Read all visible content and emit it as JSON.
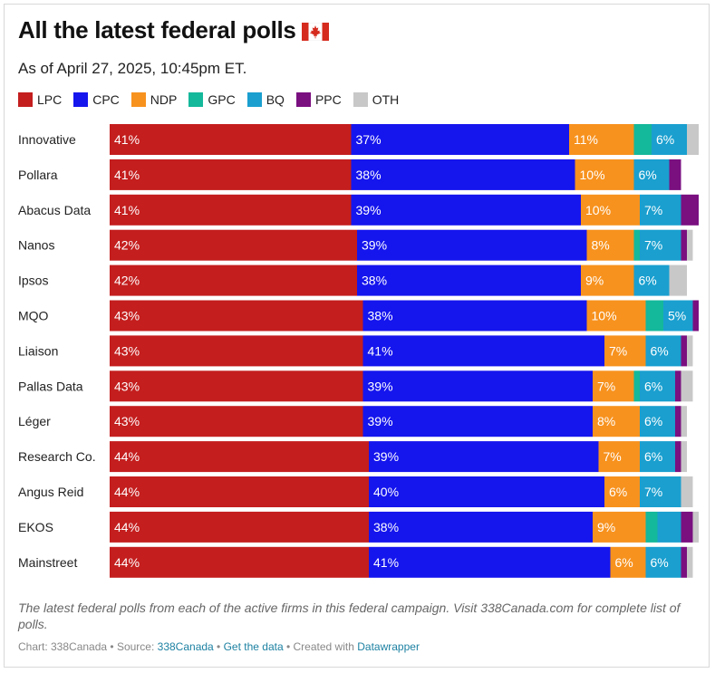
{
  "header": {
    "title": "All the latest federal polls",
    "subtitle": "As of April 27, 2025, 10:45pm ET."
  },
  "colors": {
    "LPC": "#c41e1e",
    "CPC": "#1515ee",
    "NDP": "#f7921e",
    "GPC": "#14b89b",
    "BQ": "#1a9fcf",
    "PPC": "#7a0f80",
    "OTH": "#c8c8c8"
  },
  "chart_data": {
    "type": "bar",
    "orientation": "horizontal",
    "stacked": true,
    "xlim": [
      0,
      100
    ],
    "grid": false,
    "legend_position": "top-left",
    "categories": [
      "Innovative",
      "Pollara",
      "Abacus Data",
      "Nanos",
      "Ipsos",
      "MQO",
      "Liaison",
      "Pallas Data",
      "Léger",
      "Research Co.",
      "Angus Reid",
      "EKOS",
      "Mainstreet"
    ],
    "series": [
      {
        "name": "LPC",
        "values": [
          41,
          41,
          41,
          42,
          42,
          43,
          43,
          43,
          43,
          44,
          44,
          44,
          44
        ]
      },
      {
        "name": "CPC",
        "values": [
          37,
          38,
          39,
          39,
          38,
          38,
          41,
          39,
          39,
          39,
          40,
          38,
          41
        ]
      },
      {
        "name": "NDP",
        "values": [
          11,
          10,
          10,
          8,
          9,
          10,
          7,
          7,
          8,
          7,
          6,
          9,
          6
        ]
      },
      {
        "name": "GPC",
        "values": [
          3,
          0,
          0,
          1,
          0,
          3,
          0,
          1,
          0,
          0,
          0,
          2,
          0
        ]
      },
      {
        "name": "BQ",
        "values": [
          6,
          6,
          7,
          7,
          6,
          5,
          6,
          6,
          6,
          6,
          7,
          4,
          6
        ]
      },
      {
        "name": "PPC",
        "values": [
          0,
          2,
          3,
          1,
          0,
          1,
          1,
          1,
          1,
          1,
          0,
          2,
          1
        ]
      },
      {
        "name": "OTH",
        "values": [
          2,
          0,
          0,
          1,
          3,
          0,
          1,
          2,
          1,
          1,
          2,
          1,
          1
        ]
      }
    ]
  },
  "notes": "The latest federal polls from each of the active firms in this federal campaign. Visit 338Canada.com for complete list of polls.",
  "footer": {
    "chart_prefix": "Chart: 338Canada",
    "source_prefix": "Source:",
    "source_link": "338Canada",
    "get_data": "Get the data",
    "created_prefix": "Created with",
    "created_link": "Datawrapper"
  }
}
